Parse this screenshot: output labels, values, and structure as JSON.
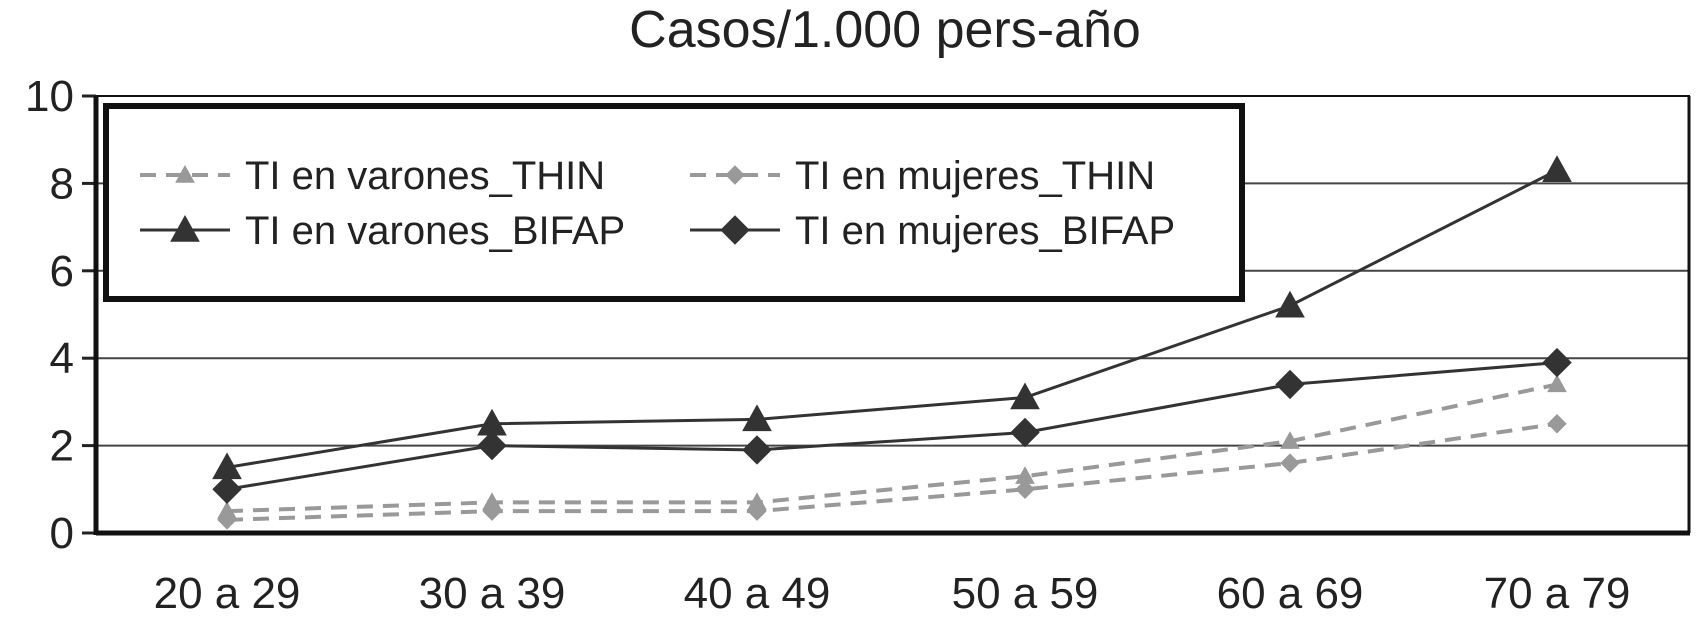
{
  "chart_data": {
    "type": "line",
    "title": "Casos/1.000 pers-año",
    "xlabel": "",
    "ylabel": "",
    "categories": [
      "20 a 29",
      "30 a 39",
      "40 a 49",
      "50 a 59",
      "60 a 69",
      "70 a 79"
    ],
    "ylim": [
      0,
      10
    ],
    "yticks": [
      "0",
      "2",
      "4",
      "6",
      "8",
      "10"
    ],
    "grid": "horizontal",
    "legend_position": "top-left inside plot",
    "series": [
      {
        "name": "TI en varones_THIN",
        "marker": "triangle",
        "line": "dashed",
        "color": "#999999",
        "values": [
          0.5,
          0.7,
          0.7,
          1.3,
          2.1,
          3.4
        ]
      },
      {
        "name": "TI en mujeres_THIN",
        "marker": "diamond",
        "line": "dashed",
        "color": "#999999",
        "values": [
          0.3,
          0.5,
          0.5,
          1.0,
          1.6,
          2.5
        ]
      },
      {
        "name": "TI en varones_BIFAP",
        "marker": "triangle",
        "line": "solid",
        "color": "#333333",
        "values": [
          1.5,
          2.5,
          2.6,
          3.1,
          5.2,
          8.3
        ]
      },
      {
        "name": "TI en mujeres_BIFAP",
        "marker": "diamond",
        "line": "solid",
        "color": "#333333",
        "values": [
          1.0,
          2.0,
          1.9,
          2.3,
          3.4,
          3.9
        ]
      }
    ]
  }
}
